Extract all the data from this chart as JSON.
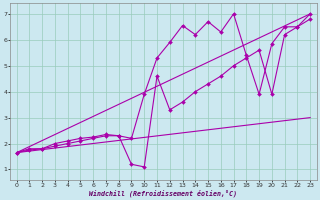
{
  "xlabel": "Windchill (Refroidissement éolien,°C)",
  "bg_color": "#cce8f0",
  "grid_color": "#99ccbb",
  "line_color": "#aa00aa",
  "xlim": [
    -0.5,
    23.5
  ],
  "ylim": [
    0.6,
    7.4
  ],
  "yticks": [
    1,
    2,
    3,
    4,
    5,
    6,
    7
  ],
  "xticks": [
    0,
    1,
    2,
    3,
    4,
    5,
    6,
    7,
    8,
    9,
    10,
    11,
    12,
    13,
    14,
    15,
    16,
    17,
    18,
    19,
    20,
    21,
    22,
    23
  ],
  "series": [
    {
      "x": [
        0,
        1,
        2,
        3,
        4,
        5,
        6,
        7,
        8,
        9,
        10,
        11,
        12,
        13,
        14,
        15,
        16,
        17,
        18,
        19,
        20,
        21,
        22,
        23
      ],
      "y": [
        1.65,
        1.8,
        1.8,
        1.9,
        2.0,
        2.1,
        2.2,
        2.3,
        2.3,
        2.2,
        3.9,
        5.3,
        5.9,
        6.55,
        6.2,
        6.7,
        6.3,
        7.0,
        5.4,
        3.9,
        5.85,
        6.5,
        6.5,
        7.0
      ],
      "marker": true
    },
    {
      "x": [
        0,
        1,
        2,
        3,
        4,
        5,
        6,
        7,
        8,
        9,
        10,
        11,
        12,
        13,
        14,
        15,
        16,
        17,
        18,
        19,
        20,
        21,
        22,
        23
      ],
      "y": [
        1.65,
        1.75,
        1.8,
        2.0,
        2.1,
        2.2,
        2.25,
        2.35,
        2.3,
        1.2,
        1.1,
        4.6,
        3.3,
        3.6,
        4.0,
        4.3,
        4.6,
        5.0,
        5.3,
        5.6,
        3.9,
        6.2,
        6.5,
        6.8
      ],
      "marker": true
    },
    {
      "x": [
        0,
        23
      ],
      "y": [
        1.65,
        7.0
      ],
      "marker": false
    },
    {
      "x": [
        0,
        23
      ],
      "y": [
        1.65,
        3.0
      ],
      "marker": false
    }
  ]
}
